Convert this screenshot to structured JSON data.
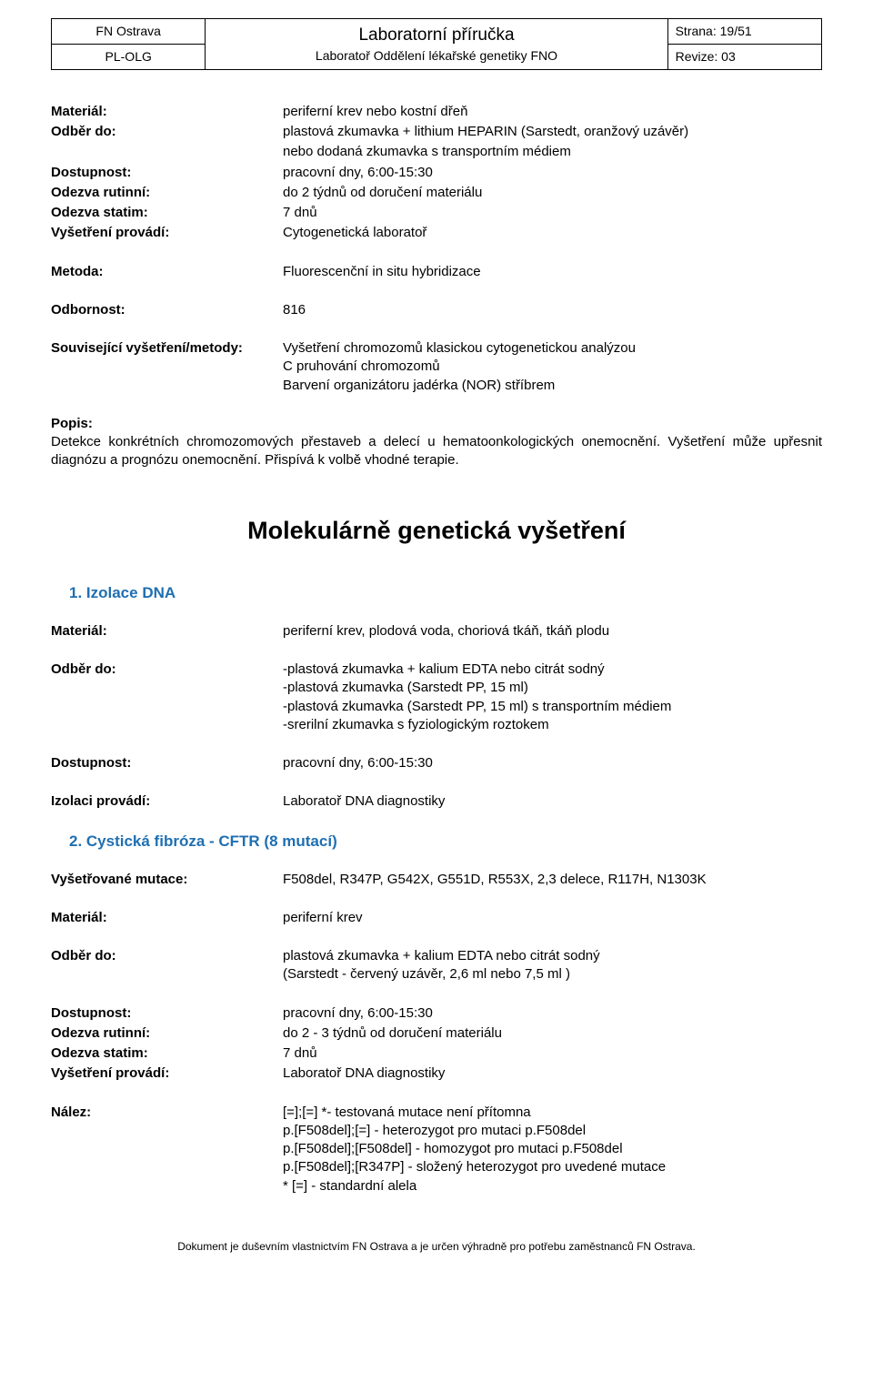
{
  "header": {
    "org": "FN Ostrava",
    "dept": "PL-OLG",
    "title1": "Laboratorní příručka",
    "title2": "Laboratoř Oddělení lékařské genetiky FNO",
    "page": "Strana: 19/51",
    "rev": "Revize: 03"
  },
  "block1": {
    "rows": [
      {
        "label": "Materiál:",
        "val": "periferní krev nebo kostní dřeň"
      },
      {
        "label": "Odběr do:",
        "val": "plastová zkumavka + lithium HEPARIN (Sarstedt, oranžový uzávěr)"
      },
      {
        "label": "",
        "val": "nebo dodaná zkumavka s transportním médiem"
      },
      {
        "label": "Dostupnost:",
        "val": "pracovní dny, 6:00-15:30"
      },
      {
        "label": "Odezva rutinní:",
        "val": "do 2 týdnů od doručení materiálu"
      },
      {
        "label": "Odezva statim:",
        "val": "7 dnů"
      },
      {
        "label": "Vyšetření provádí:",
        "val": "Cytogenetická laboratoř"
      }
    ],
    "metoda": {
      "label": "Metoda:",
      "val": "Fluorescenční in situ hybridizace"
    },
    "odbornost": {
      "label": "Odbornost:",
      "val": "816"
    },
    "souvis": {
      "label": "Související vyšetření/metody:",
      "lines": [
        "Vyšetření chromozomů klasickou cytogenetickou analýzou",
        "C pruhování chromozomů",
        "Barvení organizátoru jadérka (NOR) stříbrem"
      ]
    },
    "popis": {
      "label": "Popis:",
      "text": "Detekce konkrétních chromozomových přestaveb a delecí u hematoonkologických onemocnění. Vyšetření může upřesnit diagnózu a prognózu onemocnění. Přispívá k volbě vhodné terapie."
    }
  },
  "main_heading": "Molekulárně genetická vyšetření",
  "sec1": {
    "title": "1.  Izolace DNA",
    "rows": [
      {
        "label": "Materiál:",
        "val": "periferní krev, plodová voda, choriová tkáň, tkáň plodu"
      }
    ],
    "odber": {
      "label": "Odběr do:",
      "lines": [
        "-plastová zkumavka + kalium EDTA nebo citrát sodný",
        "-plastová zkumavka (Sarstedt PP, 15 ml)",
        "-plastová zkumavka (Sarstedt PP, 15 ml) s transportním  médiem",
        "-srerilní zkumavka s fyziologickým roztokem"
      ]
    },
    "rows2": [
      {
        "label": "Dostupnost:",
        "val": "pracovní dny, 6:00-15:30"
      }
    ],
    "rows3": [
      {
        "label": "Izolaci provádí:",
        "val": "Laboratoř DNA diagnostiky"
      }
    ]
  },
  "sec2": {
    "title": "2.  Cystická fibróza - CFTR (8 mutací)",
    "rows": [
      {
        "label": "Vyšetřované mutace:",
        "val": "F508del, R347P, G542X, G551D, R553X, 2,3 delece, R117H, N1303K"
      }
    ],
    "rows_mat": [
      {
        "label": "Materiál:",
        "val": "periferní krev"
      }
    ],
    "odber": {
      "label": "Odběr do:",
      "lines": [
        "plastová zkumavka + kalium EDTA nebo citrát sodný",
        "(Sarstedt - červený uzávěr, 2,6 ml nebo 7,5 ml )"
      ]
    },
    "rows2": [
      {
        "label": "Dostupnost:",
        "val": "pracovní dny, 6:00-15:30"
      },
      {
        "label": "Odezva rutinní:",
        "val": "do 2 - 3 týdnů od doručení materiálu"
      },
      {
        "label": "Odezva statim:",
        "val": "7 dnů"
      },
      {
        "label": "Vyšetření provádí:",
        "val": "Laboratoř DNA diagnostiky"
      }
    ],
    "nalez": {
      "label": "Nález:",
      "lines": [
        "[=];[=] *- testovaná mutace není přítomna",
        "p.[F508del];[=] - heterozygot pro mutaci p.F508del",
        "p.[F508del];[F508del] - homozygot pro mutaci p.F508del",
        "p.[F508del];[R347P] - složený heterozygot pro uvedené mutace",
        "* [=] - standardní alela"
      ]
    }
  },
  "footer": "Dokument je duševním vlastnictvím FN Ostrava a je určen výhradně pro potřebu zaměstnanců FN Ostrava."
}
